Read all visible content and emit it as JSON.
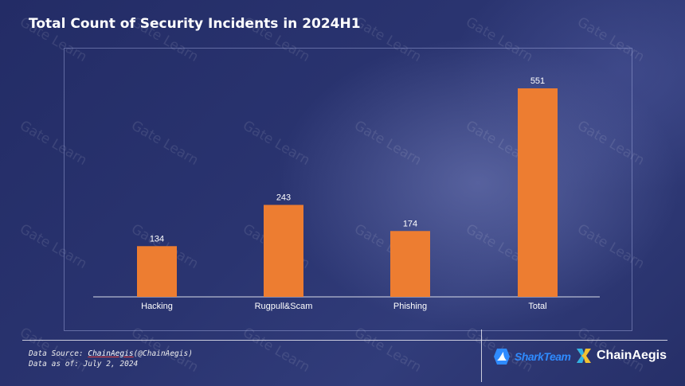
{
  "title": "Total Count of Security Incidents in 2024H1",
  "chart_data": {
    "type": "bar",
    "title": "Total Count of Security Incidents in 2024H1",
    "categories": [
      "Hacking",
      "Rugpull&Scam",
      "Phishing",
      "Total"
    ],
    "values": [
      134,
      243,
      174,
      551
    ],
    "data_labels": [
      "134",
      "243",
      "174",
      "551"
    ],
    "ylim": [
      0,
      600
    ],
    "grid": false,
    "legend": "none",
    "bar_color": "#ed7d31"
  },
  "footer": {
    "source_prefix": "Data Source: ",
    "source_link": "ChainAegis",
    "source_suffix": "(@ChainAegis)",
    "date_line": "Data as of: July 2, 2024"
  },
  "logos": {
    "shark": "SharkTeam",
    "shark_icon": "shark-fin-icon",
    "chainaegis": "ChainAegis",
    "chainaegis_icon": "chainaegis-x-icon"
  },
  "watermark": "Gate Learn",
  "colors": {
    "background": "#26306a",
    "bar": "#ed7d31",
    "text": "#ffffff",
    "shark_blue": "#2f8bff"
  }
}
